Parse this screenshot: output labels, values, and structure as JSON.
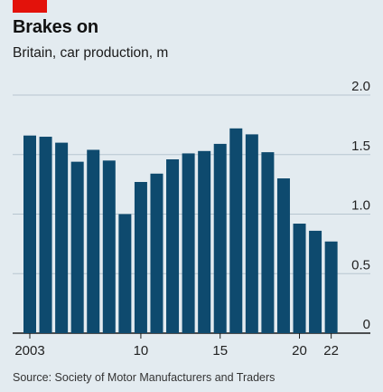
{
  "header": {
    "title": "Brakes on",
    "subtitle": "Britain, car production, m"
  },
  "footer": {
    "source": "Source: Society of Motor Manufacturers and Traders"
  },
  "colors": {
    "bar": "#0e4a6e",
    "accent_tag": "#e3120b",
    "gridline": "#b7c6cf",
    "baseline": "#1a1a1a",
    "background": "#e3ebf0"
  },
  "chart_data": {
    "type": "bar",
    "categories": [
      "2003",
      "2004",
      "2005",
      "2006",
      "2007",
      "2008",
      "2009",
      "2010",
      "2011",
      "2012",
      "2013",
      "2014",
      "2015",
      "2016",
      "2017",
      "2018",
      "2019",
      "2020",
      "2021",
      "2022"
    ],
    "values": [
      1.66,
      1.65,
      1.6,
      1.44,
      1.54,
      1.45,
      1.0,
      1.27,
      1.34,
      1.46,
      1.51,
      1.53,
      1.59,
      1.72,
      1.67,
      1.52,
      1.3,
      0.92,
      0.86,
      0.77
    ],
    "x_tick_labels": [
      {
        "category": "2003",
        "label": "2003"
      },
      {
        "category": "2010",
        "label": "10"
      },
      {
        "category": "2015",
        "label": "15"
      },
      {
        "category": "2020",
        "label": "20"
      },
      {
        "category": "2022",
        "label": "22"
      }
    ],
    "y_ticks": [
      0,
      0.5,
      1.0,
      1.5,
      2.0
    ],
    "y_tick_labels": [
      "0",
      "0.5",
      "1.0",
      "1.5",
      "2.0"
    ],
    "ylim": [
      0,
      2.0
    ],
    "grid": true,
    "ylabel_position": "right",
    "xlabel": "",
    "ylabel": ""
  }
}
